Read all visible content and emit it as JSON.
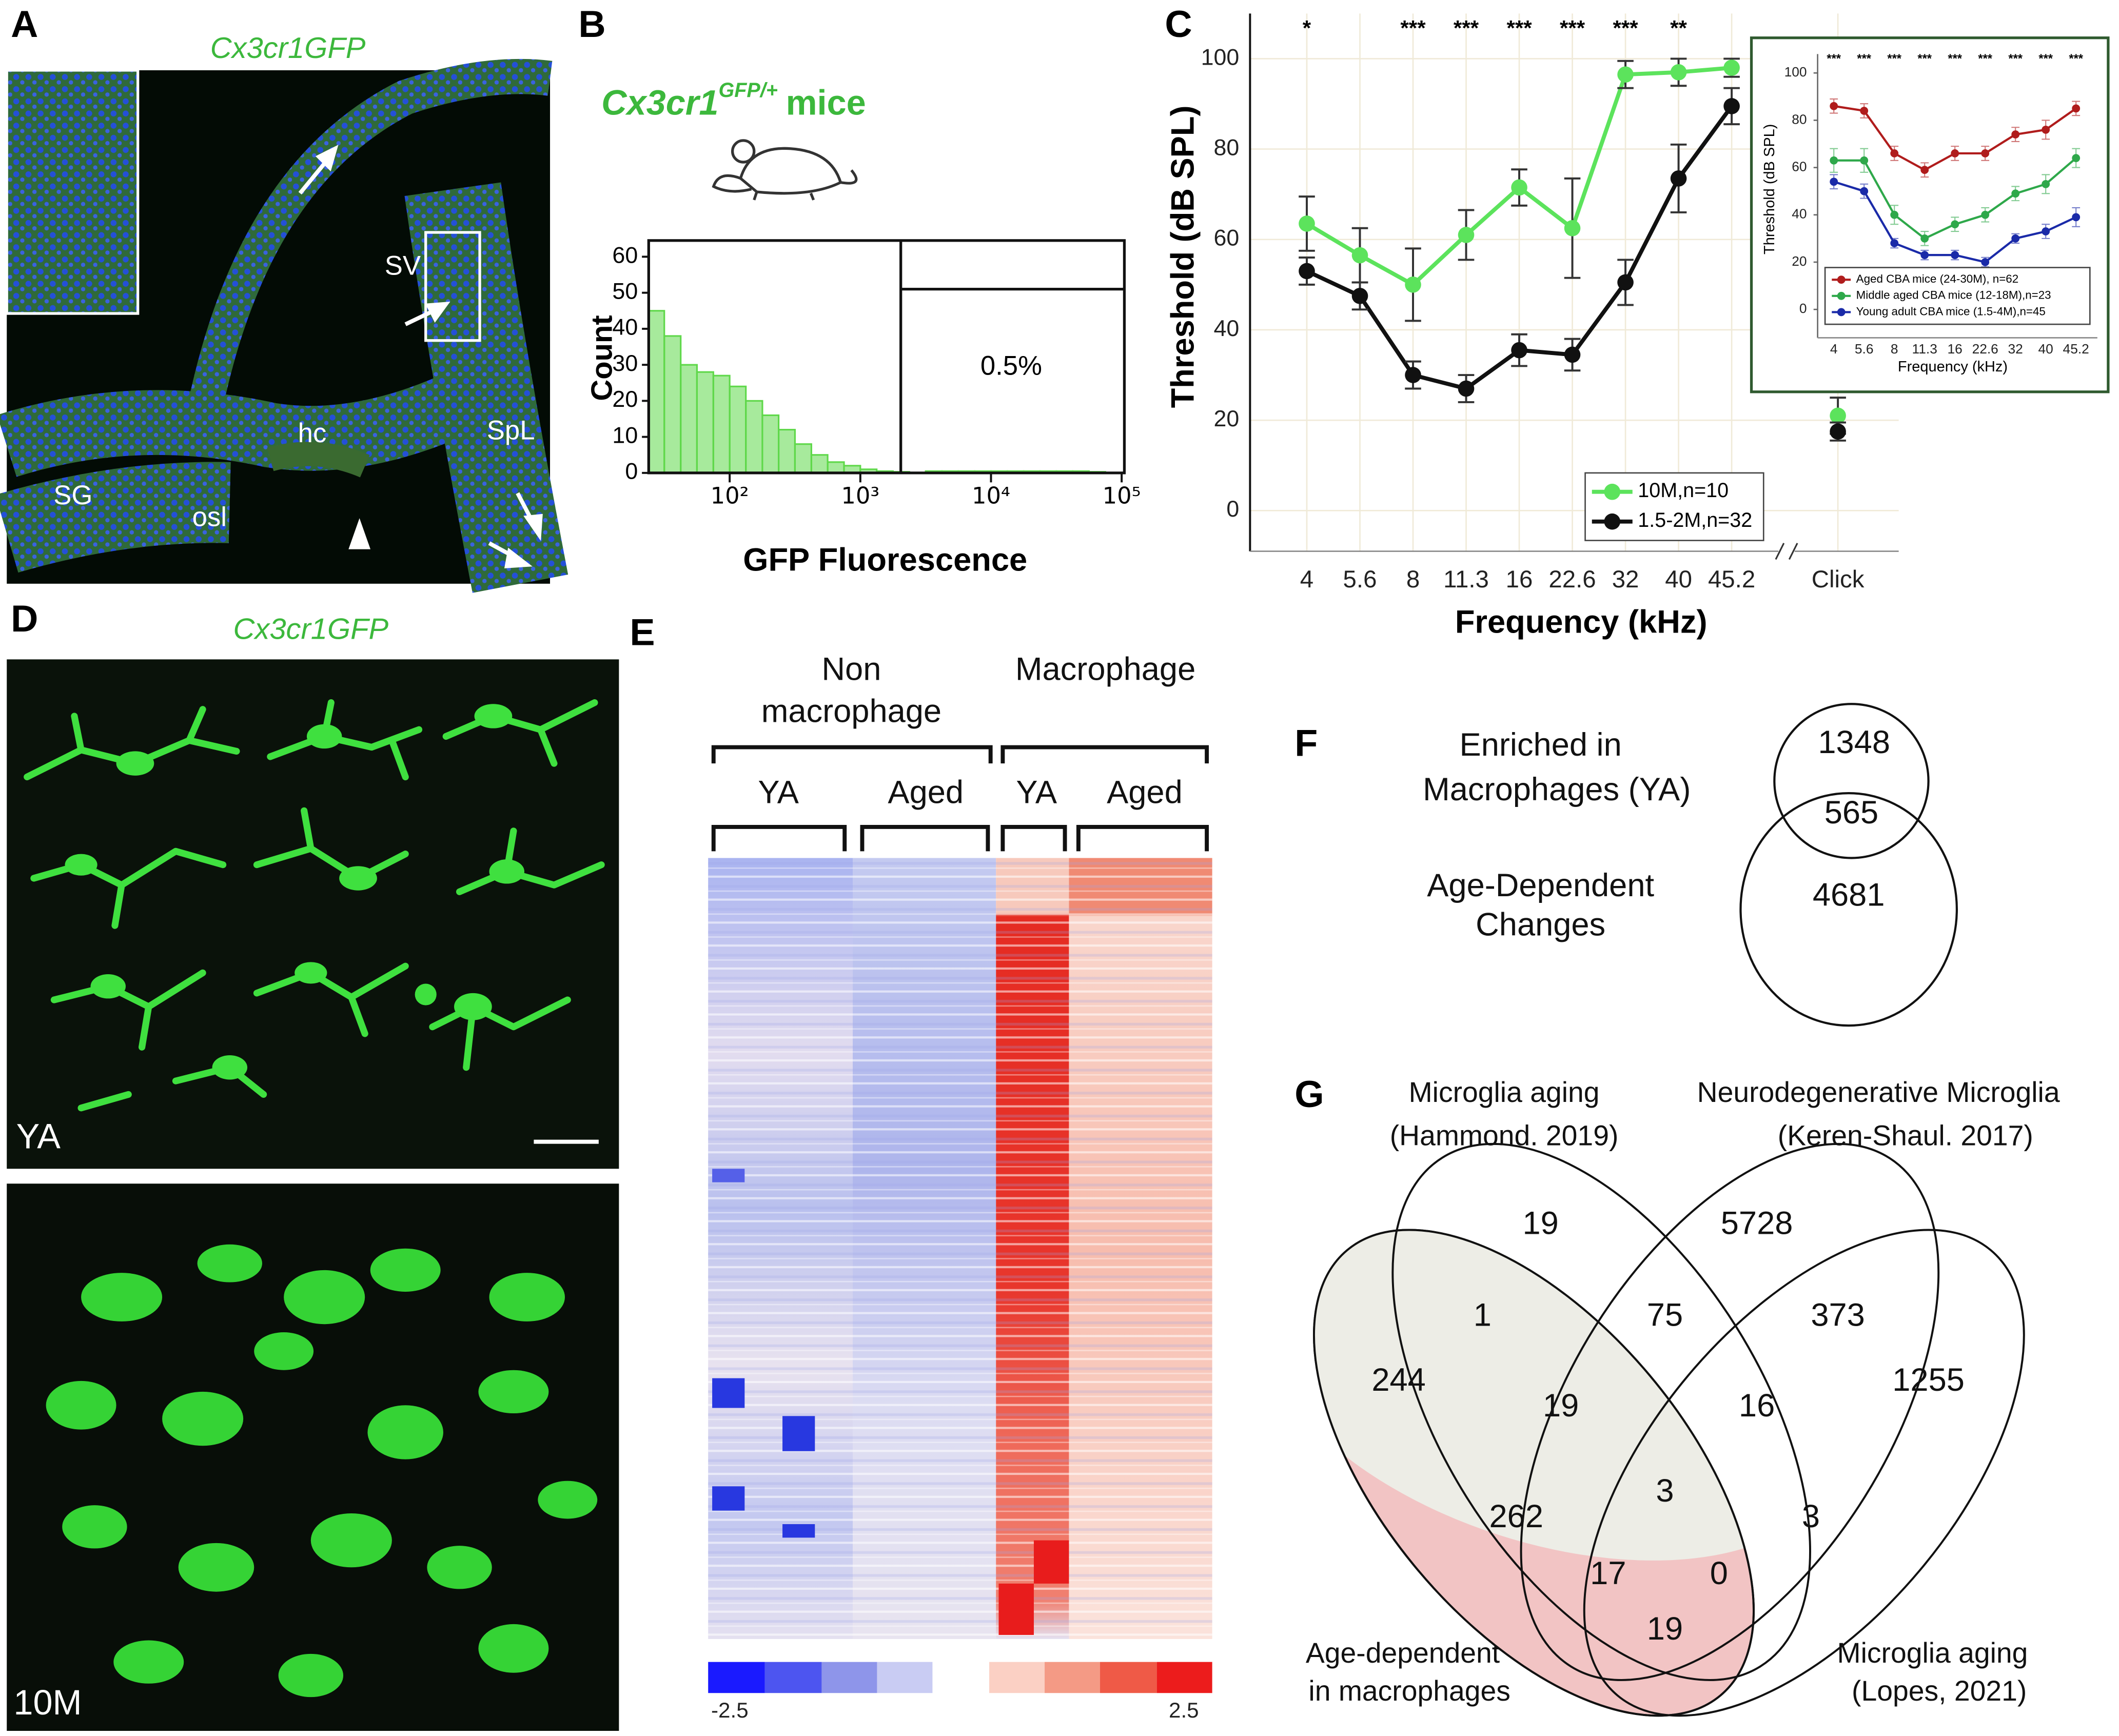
{
  "panel_labels": [
    "A",
    "B",
    "C",
    "D",
    "E",
    "F",
    "G"
  ],
  "panel_a": {
    "title": "Cx3cr1GFP",
    "labels": [
      "SV",
      "hc",
      "SpL",
      "SG",
      "osl"
    ]
  },
  "panel_b": {
    "title": "Cx3cr1",
    "title_superscript": "GFP/+",
    "title_suffix": "mice"
  },
  "panel_d": {
    "title": "Cx3cr1GFP",
    "labels": [
      "YA",
      "10M"
    ]
  },
  "panel_e": {
    "groups": [
      {
        "lines": [
          "Non",
          "macrophage"
        ]
      },
      {
        "lines": [
          "Macrophage"
        ]
      }
    ],
    "subgroups": [
      "YA",
      "Aged",
      "YA",
      "Aged"
    ],
    "colorbar_range": [
      -2.5,
      2.5
    ]
  },
  "panel_f": {
    "sets": [
      {
        "lines": [
          "Enriched in",
          "Macrophages (YA)"
        ]
      },
      {
        "lines": [
          "Age-Dependent",
          "Changes"
        ]
      }
    ],
    "counts": [
      1348,
      565,
      4681
    ]
  },
  "panel_g": {
    "sets": [
      {
        "lines": [
          "Microglia aging",
          "(Hammond. 2019)"
        ]
      },
      {
        "lines": [
          "Neurodegenerative Microglia",
          "(Keren-Shaul. 2017)"
        ]
      },
      {
        "lines": [
          "Age-dependent",
          "in macrophages"
        ]
      },
      {
        "lines": [
          "Microglia aging",
          "(Lopes, 2021)"
        ]
      }
    ],
    "counts": [
      19,
      5728,
      1,
      75,
      373,
      244,
      1255,
      19,
      16,
      3,
      262,
      3,
      17,
      0,
      19
    ]
  },
  "chart_data": [
    {
      "type": "histogram",
      "xlabel": "GFP Fluorescence",
      "ylabel": "Count",
      "color": "#5fd84a",
      "xscale": "log",
      "bins": [
        23.7,
        31.6,
        42.2,
        56.2,
        75,
        100,
        133,
        178,
        237,
        316,
        422,
        562,
        750,
        1000,
        1334,
        1778,
        2371,
        3162,
        4217,
        5623,
        7499,
        10000,
        13335,
        17783,
        23714,
        31623,
        42170,
        56234,
        74989,
        100000
      ],
      "counts": [
        45,
        38,
        30,
        28,
        27,
        24,
        20,
        16,
        12,
        8,
        5,
        3,
        2,
        1,
        0.5,
        0.3,
        0,
        0.5,
        0.5,
        0.5,
        0.5,
        0.5,
        0.5,
        0.5,
        0.5,
        0.5,
        0.5,
        0.3,
        0
      ],
      "xlim": [
        24,
        100000
      ],
      "xticks": [
        {
          "value": 100,
          "label": "10²"
        },
        {
          "value": 1000,
          "label": "10³"
        },
        {
          "value": 10000,
          "label": "10⁴"
        },
        {
          "value": 100000,
          "label": "10⁵"
        }
      ],
      "ylim": [
        0,
        64.5
      ],
      "yticks": [
        0,
        10,
        20,
        30,
        40,
        50,
        60
      ],
      "gate": {
        "x": 2040,
        "y": 51,
        "label": "0.5%"
      }
    },
    {
      "type": "line",
      "ylabel": "Threshold (dB SPL)",
      "xlabel": "Frequency (kHz)",
      "categories": [
        "4",
        "5.6",
        "8",
        "11.3",
        "16",
        "22.6",
        "32",
        "40",
        "45.2",
        null,
        "Click"
      ],
      "series": [
        {
          "name": "10M,n=10",
          "color": "#5ce35c",
          "values": [
            63.5,
            56.5,
            50,
            61,
            71.5,
            62.5,
            96.5,
            97,
            98,
            null,
            21
          ],
          "errors": [
            6,
            6,
            8,
            5.5,
            4,
            11,
            3,
            3,
            2,
            null,
            4
          ]
        },
        {
          "name": "1.5-2M,n=32",
          "color": "#111111",
          "values": [
            53,
            47.5,
            30,
            27,
            35.5,
            34.5,
            50.5,
            73.5,
            89.5,
            null,
            17.5
          ],
          "errors": [
            3,
            3,
            3,
            3,
            3.5,
            3.5,
            5,
            7.5,
            4,
            null,
            2
          ]
        }
      ],
      "annotations": [
        "*",
        null,
        "***",
        "***",
        "***",
        "***",
        "***",
        "**",
        null,
        null,
        null
      ],
      "ylim": [
        -9,
        110
      ],
      "yticks": [
        0,
        20,
        40,
        60,
        80,
        100
      ],
      "grid": true,
      "legend": "lower right"
    },
    {
      "type": "line",
      "ylabel": "Threshold (dB SPL)",
      "xlabel": "Frequency (kHz)",
      "categories": [
        "4",
        "5.6",
        "8",
        "11.3",
        "16",
        "22.6",
        "32",
        "40",
        "45.2"
      ],
      "series": [
        {
          "name": "Aged CBA mice (24-30M), n=62",
          "color": "#b01c1c",
          "values": [
            86,
            84,
            66,
            59,
            66,
            66,
            74,
            76,
            85
          ],
          "errors": [
            3,
            3,
            3,
            3,
            3,
            3,
            3,
            4,
            3
          ]
        },
        {
          "name": "Middle aged CBA mice (12-18M),n=23",
          "color": "#2ea84a",
          "values": [
            63,
            63,
            40,
            30,
            36,
            40,
            49,
            53,
            64
          ],
          "errors": [
            5,
            5,
            4,
            3,
            3,
            3,
            3,
            4,
            4
          ]
        },
        {
          "name": "Young adult CBA mice (1.5-4M),n=45",
          "color": "#1a2aa8",
          "values": [
            54,
            50,
            28,
            23,
            23,
            20,
            30,
            33,
            39
          ],
          "errors": [
            3,
            3,
            2,
            2,
            2,
            2,
            2,
            3,
            4
          ]
        }
      ],
      "annotations": [
        "***",
        "***",
        "***",
        "***",
        "***",
        "***",
        "***",
        "***",
        "***"
      ],
      "ylim": [
        -12,
        108
      ],
      "yticks": [
        0,
        20,
        40,
        60,
        80,
        100
      ],
      "grid": false,
      "legend": "lower center"
    }
  ]
}
